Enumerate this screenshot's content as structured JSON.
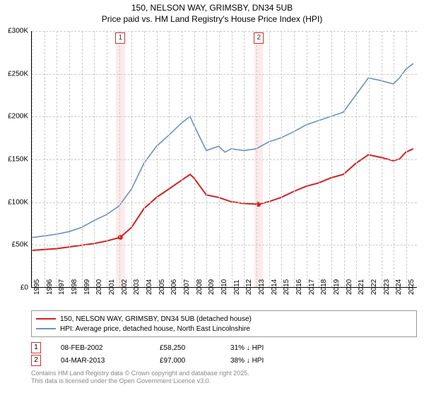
{
  "title_line1": "150, NELSON WAY, GRIMSBY, DN34 5UB",
  "title_line2": "Price paid vs. HM Land Registry's House Price Index (HPI)",
  "y": {
    "min": 0,
    "max": 300000,
    "step": 50000,
    "labels": [
      "£0",
      "£50K",
      "£100K",
      "£150K",
      "£200K",
      "£250K",
      "£300K"
    ]
  },
  "x": {
    "min": 1995,
    "max": 2025.9,
    "ticks": [
      1995,
      1996,
      1997,
      1998,
      1999,
      2000,
      2001,
      2002,
      2003,
      2004,
      2005,
      2006,
      2007,
      2008,
      2009,
      2010,
      2011,
      2012,
      2013,
      2014,
      2015,
      2016,
      2017,
      2018,
      2019,
      2020,
      2021,
      2022,
      2023,
      2024,
      2025
    ]
  },
  "series": {
    "red": {
      "label": "150, NELSON WAY, GRIMSBY, DN34 5UB (detached house)",
      "color": "#d32020",
      "data": [
        [
          1995,
          43000
        ],
        [
          1996,
          44000
        ],
        [
          1997,
          45000
        ],
        [
          1998,
          47000
        ],
        [
          1999,
          49000
        ],
        [
          2000,
          51000
        ],
        [
          2001,
          54000
        ],
        [
          2002.1,
          58250
        ],
        [
          2003,
          70000
        ],
        [
          2004,
          92000
        ],
        [
          2005,
          105000
        ],
        [
          2006,
          115000
        ],
        [
          2007,
          125000
        ],
        [
          2007.7,
          132000
        ],
        [
          2008,
          128000
        ],
        [
          2008.5,
          118000
        ],
        [
          2009,
          108000
        ],
        [
          2010,
          105000
        ],
        [
          2011,
          100000
        ],
        [
          2012,
          98000
        ],
        [
          2013.18,
          97000
        ],
        [
          2014,
          100000
        ],
        [
          2015,
          105000
        ],
        [
          2016,
          112000
        ],
        [
          2017,
          118000
        ],
        [
          2018,
          122000
        ],
        [
          2019,
          128000
        ],
        [
          2020,
          132000
        ],
        [
          2021,
          145000
        ],
        [
          2022,
          155000
        ],
        [
          2023,
          152000
        ],
        [
          2024,
          148000
        ],
        [
          2024.5,
          150000
        ],
        [
          2025,
          158000
        ],
        [
          2025.6,
          162000
        ]
      ]
    },
    "blue": {
      "label": "HPI: Average price, detached house, North East Lincolnshire",
      "color": "#6a8fc5",
      "data": [
        [
          1995,
          58000
        ],
        [
          1996,
          60000
        ],
        [
          1997,
          62000
        ],
        [
          1998,
          65000
        ],
        [
          1999,
          70000
        ],
        [
          2000,
          78000
        ],
        [
          2001,
          85000
        ],
        [
          2002,
          95000
        ],
        [
          2003,
          115000
        ],
        [
          2004,
          145000
        ],
        [
          2005,
          165000
        ],
        [
          2006,
          178000
        ],
        [
          2007,
          192000
        ],
        [
          2007.7,
          200000
        ],
        [
          2008,
          190000
        ],
        [
          2008.5,
          175000
        ],
        [
          2009,
          160000
        ],
        [
          2010,
          165000
        ],
        [
          2010.5,
          158000
        ],
        [
          2011,
          162000
        ],
        [
          2012,
          160000
        ],
        [
          2013,
          162000
        ],
        [
          2014,
          170000
        ],
        [
          2015,
          175000
        ],
        [
          2016,
          182000
        ],
        [
          2017,
          190000
        ],
        [
          2018,
          195000
        ],
        [
          2019,
          200000
        ],
        [
          2020,
          205000
        ],
        [
          2021,
          225000
        ],
        [
          2022,
          245000
        ],
        [
          2023,
          242000
        ],
        [
          2024,
          238000
        ],
        [
          2024.5,
          245000
        ],
        [
          2025,
          255000
        ],
        [
          2025.6,
          262000
        ]
      ]
    }
  },
  "sales": [
    {
      "n": "1",
      "year": 2002.1,
      "date": "08-FEB-2002",
      "price": "£58,250",
      "pct": "31% ↓ HPI"
    },
    {
      "n": "2",
      "year": 2013.18,
      "date": "04-MAR-2013",
      "price": "£97,000",
      "pct": "38% ↓ HPI"
    }
  ],
  "highlight_band_width_years": 0.7,
  "colors": {
    "grid": "#cccccc",
    "highlight": "#fdeaea",
    "marker_border": "#d32f2f"
  },
  "footnote1": "Contains HM Land Registry data © Crown copyright and database right 2025.",
  "footnote2": "This data is licensed under the Open Government Licence v3.0."
}
